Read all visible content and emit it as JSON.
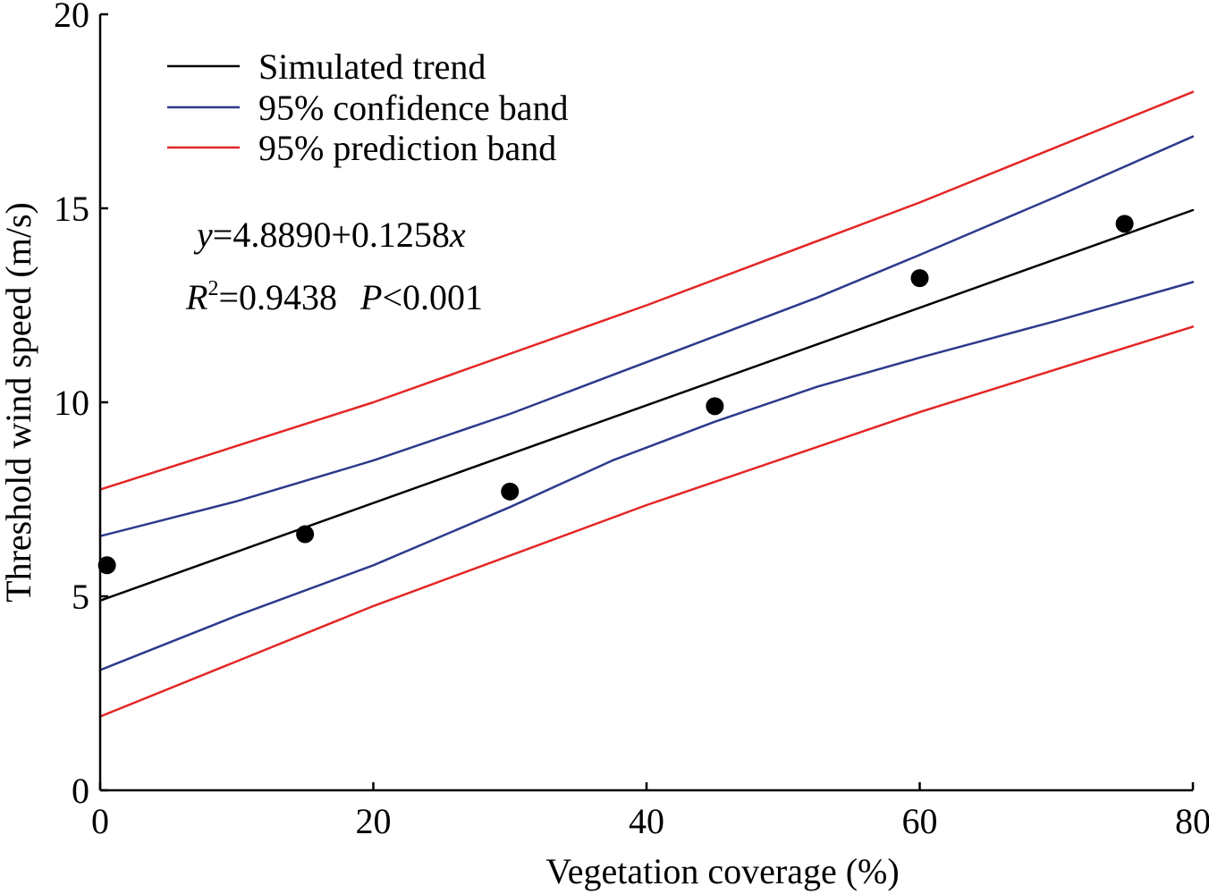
{
  "chart_data": {
    "type": "scatter",
    "xlabel": "Vegetation coverage (%)",
    "ylabel": "Threshold wind speed (m/s)",
    "xlim": [
      0,
      80
    ],
    "ylim": [
      0,
      20
    ],
    "xticks": [
      0,
      20,
      40,
      60,
      80
    ],
    "yticks": [
      0,
      5,
      10,
      15,
      20
    ],
    "grid": false,
    "legend_position": "top-left",
    "points": {
      "x": [
        0.5,
        15,
        30,
        45,
        60,
        75
      ],
      "y": [
        5.8,
        6.6,
        7.7,
        9.9,
        13.2,
        14.6
      ],
      "color": "#000000"
    },
    "series": [
      {
        "name": "Simulated trend",
        "type": "line",
        "color": "#000000",
        "x": [
          0,
          80
        ],
        "y": [
          4.889,
          14.953
        ]
      },
      {
        "name": "95% confidence band",
        "type": "line",
        "color": "#2e3a8c",
        "parts": [
          {
            "x": [
              0,
              10,
              20,
              30,
              37.5,
              45,
              52.5,
              60,
              70,
              80
            ],
            "y": [
              6.55,
              7.45,
              8.5,
              9.7,
              10.7,
              11.7,
              12.7,
              13.8,
              15.3,
              16.85
            ]
          },
          {
            "x": [
              0,
              10,
              20,
              30,
              37.5,
              45,
              52.5,
              60,
              70,
              80
            ],
            "y": [
              3.1,
              4.5,
              5.8,
              7.3,
              8.5,
              9.5,
              10.4,
              11.15,
              12.1,
              13.1
            ]
          }
        ]
      },
      {
        "name": "95% prediction band",
        "type": "line",
        "color": "#e32626",
        "parts": [
          {
            "x": [
              0,
              20,
              40,
              60,
              80
            ],
            "y": [
              7.75,
              10.0,
              12.5,
              15.15,
              18.0
            ]
          },
          {
            "x": [
              0,
              20,
              40,
              60,
              80
            ],
            "y": [
              1.9,
              4.75,
              7.35,
              9.75,
              11.95
            ]
          }
        ]
      }
    ],
    "annotations": {
      "equation": {
        "var_y": "y",
        "rest": "=4.8890+0.1258",
        "var_x": "x"
      },
      "stats": {
        "r": "R",
        "sup": "2",
        "r_value": "=0.9438",
        "p": "P",
        "p_value": "<0.001"
      }
    }
  }
}
